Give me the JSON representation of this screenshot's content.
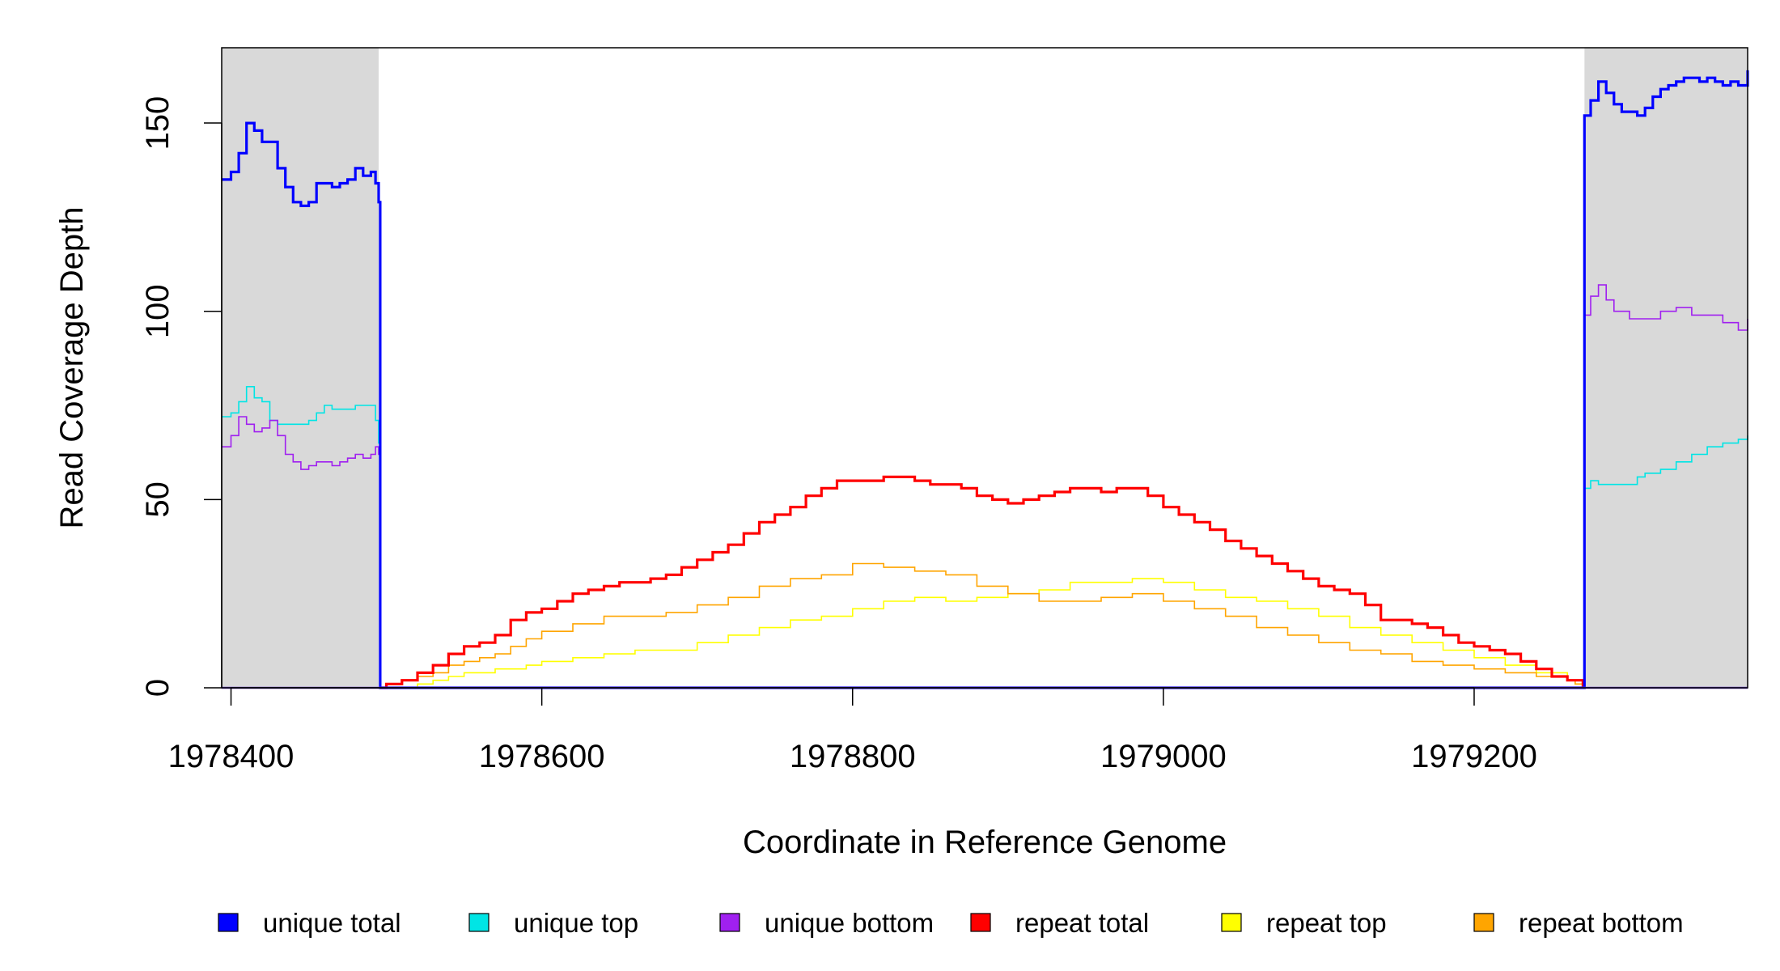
{
  "chart_data": {
    "type": "line",
    "title": "",
    "xlabel": "Coordinate in Reference Genome",
    "ylabel": "Read Coverage Depth",
    "xlim": [
      1978394,
      1979376
    ],
    "ylim": [
      0,
      170
    ],
    "x_ticks": [
      1978400,
      1978600,
      1978800,
      1979000,
      1979200
    ],
    "y_ticks": [
      0,
      50,
      100,
      150
    ],
    "x_tick_labels": [
      "1978400",
      "1978600",
      "1978800",
      "1979000",
      "1979200"
    ],
    "y_tick_labels": [
      "0",
      "50",
      "100",
      "150"
    ],
    "grid": false,
    "legend_position": "bottom",
    "shaded_regions": [
      {
        "x_start": 1978394,
        "x_end": 1978495,
        "color": "#d9d9d9"
      },
      {
        "x_start": 1979271,
        "x_end": 1979376,
        "color": "#d9d9d9"
      }
    ],
    "series": [
      {
        "name": "unique total",
        "color": "#0000ff",
        "x": [
          1978394,
          1978400,
          1978405,
          1978410,
          1978415,
          1978420,
          1978425,
          1978430,
          1978435,
          1978440,
          1978445,
          1978450,
          1978455,
          1978460,
          1978465,
          1978470,
          1978475,
          1978480,
          1978485,
          1978490,
          1978493,
          1978495,
          1978496,
          1979270,
          1979271,
          1979275,
          1979280,
          1979285,
          1979290,
          1979295,
          1979300,
          1979305,
          1979310,
          1979315,
          1979320,
          1979325,
          1979330,
          1979335,
          1979340,
          1979345,
          1979350,
          1979355,
          1979360,
          1979365,
          1979370,
          1979376
        ],
        "y": [
          135,
          137,
          142,
          150,
          148,
          145,
          145,
          138,
          133,
          129,
          128,
          129,
          134,
          134,
          133,
          134,
          135,
          138,
          136,
          137,
          134,
          129,
          0,
          0,
          152,
          156,
          161,
          158,
          155,
          153,
          153,
          152,
          154,
          157,
          159,
          160,
          161,
          162,
          162,
          161,
          162,
          161,
          160,
          161,
          160,
          164
        ]
      },
      {
        "name": "unique top",
        "color": "#00e5e5",
        "x": [
          1978394,
          1978400,
          1978405,
          1978410,
          1978415,
          1978420,
          1978425,
          1978430,
          1978440,
          1978450,
          1978455,
          1978460,
          1978465,
          1978470,
          1978480,
          1978490,
          1978493,
          1978495,
          1978496,
          1979270,
          1979271,
          1979275,
          1979280,
          1979290,
          1979300,
          1979305,
          1979310,
          1979320,
          1979330,
          1979340,
          1979350,
          1979360,
          1979370,
          1979376
        ],
        "y": [
          72,
          73,
          76,
          80,
          77,
          76,
          71,
          70,
          70,
          71,
          73,
          75,
          74,
          74,
          75,
          75,
          71,
          65,
          0,
          0,
          53,
          55,
          54,
          54,
          54,
          56,
          57,
          58,
          60,
          62,
          64,
          65,
          66,
          67
        ]
      },
      {
        "name": "unique bottom",
        "color": "#a020f0",
        "x": [
          1978394,
          1978400,
          1978405,
          1978410,
          1978415,
          1978420,
          1978425,
          1978430,
          1978435,
          1978440,
          1978445,
          1978450,
          1978455,
          1978460,
          1978465,
          1978470,
          1978475,
          1978480,
          1978485,
          1978490,
          1978493,
          1978495,
          1978496,
          1979270,
          1979271,
          1979275,
          1979280,
          1979285,
          1979290,
          1979300,
          1979310,
          1979320,
          1979330,
          1979340,
          1979350,
          1979360,
          1979370,
          1979376
        ],
        "y": [
          64,
          67,
          72,
          70,
          68,
          69,
          71,
          67,
          62,
          60,
          58,
          59,
          60,
          60,
          59,
          60,
          61,
          62,
          61,
          62,
          64,
          62,
          0,
          0,
          99,
          104,
          107,
          103,
          100,
          98,
          98,
          100,
          101,
          99,
          99,
          97,
          95,
          98
        ]
      },
      {
        "name": "repeat total",
        "color": "#ff0000",
        "x": [
          1978496,
          1978500,
          1978510,
          1978520,
          1978530,
          1978540,
          1978550,
          1978560,
          1978570,
          1978580,
          1978590,
          1978600,
          1978610,
          1978620,
          1978630,
          1978640,
          1978650,
          1978660,
          1978670,
          1978680,
          1978690,
          1978700,
          1978710,
          1978720,
          1978730,
          1978740,
          1978750,
          1978760,
          1978770,
          1978780,
          1978790,
          1978800,
          1978810,
          1978820,
          1978830,
          1978840,
          1978850,
          1978860,
          1978870,
          1978880,
          1978890,
          1978900,
          1978910,
          1978920,
          1978930,
          1978940,
          1978950,
          1978960,
          1978970,
          1978980,
          1978990,
          1979000,
          1979010,
          1979020,
          1979030,
          1979040,
          1979050,
          1979060,
          1979070,
          1979080,
          1979090,
          1979100,
          1979110,
          1979120,
          1979130,
          1979140,
          1979150,
          1979160,
          1979170,
          1979180,
          1979190,
          1979200,
          1979210,
          1979220,
          1979230,
          1979240,
          1979250,
          1979260,
          1979265,
          1979270
        ],
        "y": [
          0,
          1,
          2,
          4,
          6,
          9,
          11,
          12,
          14,
          18,
          20,
          21,
          23,
          25,
          26,
          27,
          28,
          28,
          29,
          30,
          32,
          34,
          36,
          38,
          41,
          44,
          46,
          48,
          51,
          53,
          55,
          55,
          55,
          56,
          56,
          55,
          54,
          54,
          53,
          51,
          50,
          49,
          50,
          51,
          52,
          53,
          53,
          52,
          53,
          53,
          51,
          48,
          46,
          44,
          42,
          39,
          37,
          35,
          33,
          31,
          29,
          27,
          26,
          25,
          22,
          18,
          18,
          17,
          16,
          14,
          12,
          11,
          10,
          9,
          7,
          5,
          3,
          2,
          2,
          0
        ]
      },
      {
        "name": "repeat top",
        "color": "#ffff00",
        "x": [
          1978496,
          1978500,
          1978510,
          1978520,
          1978530,
          1978540,
          1978550,
          1978560,
          1978570,
          1978580,
          1978590,
          1978600,
          1978620,
          1978640,
          1978660,
          1978680,
          1978700,
          1978720,
          1978740,
          1978760,
          1978780,
          1978800,
          1978820,
          1978840,
          1978860,
          1978880,
          1978900,
          1978920,
          1978940,
          1978960,
          1978980,
          1979000,
          1979020,
          1979040,
          1979060,
          1979080,
          1979100,
          1979120,
          1979140,
          1979160,
          1979180,
          1979200,
          1979220,
          1979240,
          1979260,
          1979265,
          1979270
        ],
        "y": [
          0,
          0,
          0,
          1,
          2,
          3,
          4,
          4,
          5,
          5,
          6,
          7,
          8,
          9,
          10,
          10,
          12,
          14,
          16,
          18,
          19,
          21,
          23,
          24,
          23,
          24,
          25,
          26,
          28,
          28,
          29,
          28,
          26,
          24,
          23,
          21,
          19,
          16,
          14,
          12,
          10,
          8,
          6,
          4,
          2,
          1,
          0
        ]
      },
      {
        "name": "repeat bottom",
        "color": "#ffa500",
        "x": [
          1978496,
          1978500,
          1978510,
          1978520,
          1978530,
          1978540,
          1978550,
          1978560,
          1978570,
          1978580,
          1978590,
          1978600,
          1978620,
          1978640,
          1978660,
          1978680,
          1978700,
          1978720,
          1978740,
          1978760,
          1978780,
          1978800,
          1978820,
          1978840,
          1978860,
          1978880,
          1978900,
          1978920,
          1978940,
          1978960,
          1978980,
          1979000,
          1979020,
          1979040,
          1979060,
          1979080,
          1979100,
          1979120,
          1979140,
          1979160,
          1979180,
          1979200,
          1979220,
          1979240,
          1979260,
          1979265,
          1979270
        ],
        "y": [
          0,
          1,
          2,
          3,
          4,
          6,
          7,
          8,
          9,
          11,
          13,
          15,
          17,
          19,
          19,
          20,
          22,
          24,
          27,
          29,
          30,
          33,
          32,
          31,
          30,
          27,
          25,
          23,
          23,
          24,
          25,
          23,
          21,
          19,
          16,
          14,
          12,
          10,
          9,
          7,
          6,
          5,
          4,
          3,
          2,
          1,
          0
        ]
      }
    ]
  }
}
